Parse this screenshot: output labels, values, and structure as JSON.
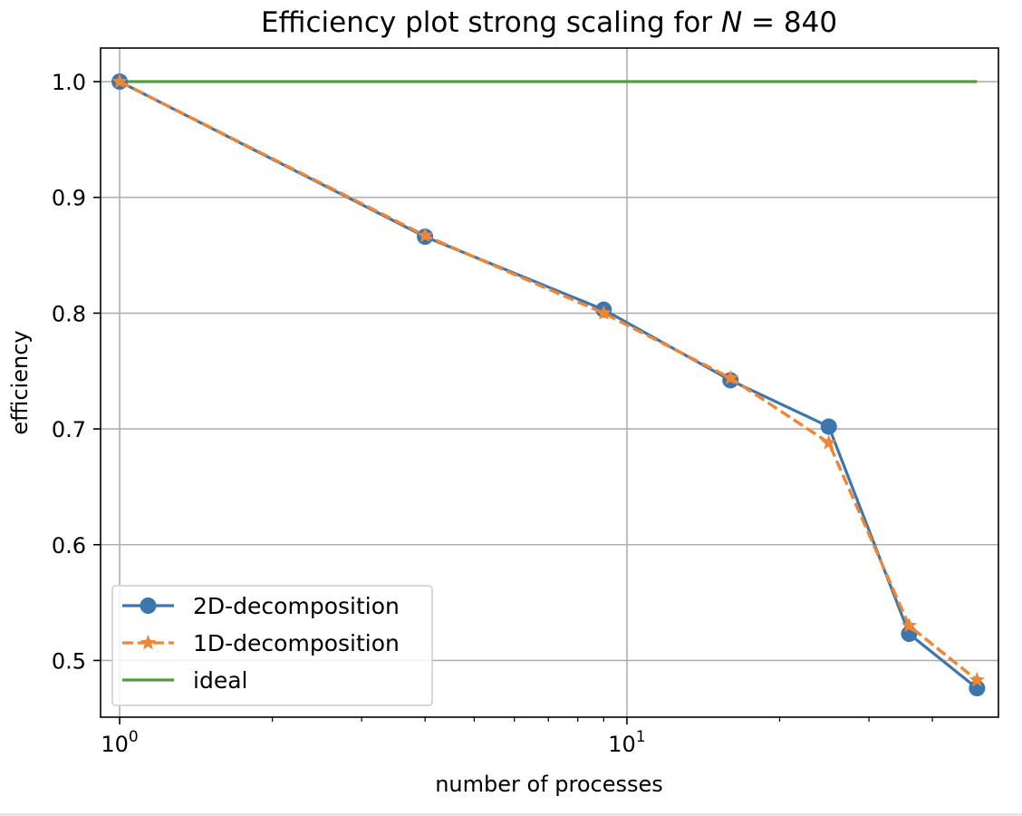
{
  "chart_data": {
    "type": "line",
    "title": "Efficiency plot strong scaling for N = 840",
    "title_parts": {
      "prefix": "Efficiency plot strong scaling for ",
      "variable": "N",
      "suffix": " = 840"
    },
    "xlabel": "number of processes",
    "ylabel": "efficiency",
    "x_scale": "log",
    "xlim": [
      0.917,
      54
    ],
    "ylim": [
      0.451,
      1.029
    ],
    "grid": true,
    "legend_position": "lower-left",
    "x_ticks": [
      {
        "value": 1,
        "base": "10",
        "exponent": "0"
      },
      {
        "value": 10,
        "base": "10",
        "exponent": "1"
      }
    ],
    "x_minor_ticks": [
      2,
      3,
      4,
      5,
      6,
      7,
      8,
      9,
      20,
      30,
      40
    ],
    "y_ticks": [
      0.5,
      0.6,
      0.7,
      0.8,
      0.9,
      1.0
    ],
    "y_tick_labels": [
      "0.5",
      "0.6",
      "0.7",
      "0.8",
      "0.9",
      "1.0"
    ],
    "series": [
      {
        "name": "2D-decomposition",
        "color": "#3b76af",
        "line_style": "solid",
        "marker": "circle",
        "x": [
          1,
          4,
          9,
          16,
          25,
          36,
          49
        ],
        "y": [
          1.0,
          0.866,
          0.803,
          0.742,
          0.702,
          0.523,
          0.476
        ]
      },
      {
        "name": "1D-decomposition",
        "color": "#ef8636",
        "line_style": "dashed",
        "marker": "star",
        "x": [
          1,
          4,
          9,
          16,
          25,
          36,
          49
        ],
        "y": [
          1.0,
          0.867,
          0.8,
          0.744,
          0.688,
          0.53,
          0.483
        ]
      },
      {
        "name": "ideal",
        "color": "#519e3e",
        "line_style": "solid",
        "marker": "none",
        "x": [
          1,
          49
        ],
        "y": [
          1.0,
          1.0
        ]
      }
    ]
  }
}
